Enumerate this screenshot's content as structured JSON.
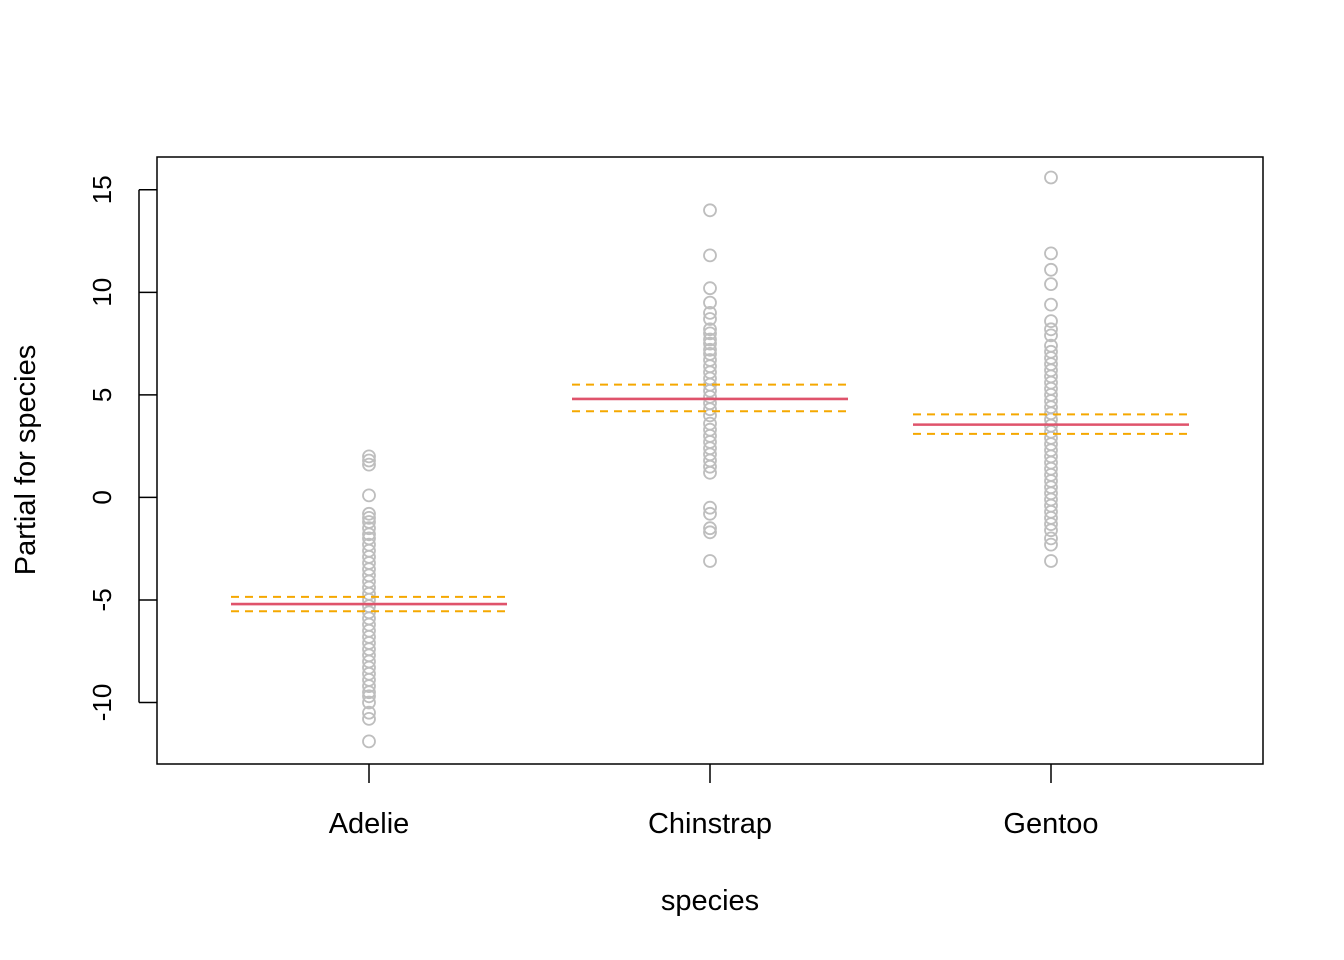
{
  "chart_data": {
    "type": "scatter",
    "title": "",
    "xlabel": "species",
    "ylabel": "Partial for species",
    "categories": [
      "Adelie",
      "Chinstrap",
      "Gentoo"
    ],
    "ylim": [
      -13,
      16.6
    ],
    "yticks": [
      -10,
      -5,
      0,
      5,
      10,
      15
    ],
    "grid": false,
    "legend": "none",
    "colors": {
      "points": "#bebebe",
      "fit": "#df536b",
      "ci": "#f5a800",
      "axis": "#000000"
    },
    "series": [
      {
        "category": "Adelie",
        "fit": -5.2,
        "ci": [
          -5.55,
          -4.85
        ],
        "points": [
          2.0,
          1.8,
          1.6,
          0.1,
          -0.8,
          -1.0,
          -1.2,
          -1.5,
          -1.8,
          -2.0,
          -2.3,
          -2.6,
          -2.9,
          -3.2,
          -3.5,
          -3.8,
          -4.1,
          -4.4,
          -4.7,
          -5.0,
          -5.3,
          -5.6,
          -5.9,
          -6.2,
          -6.5,
          -6.8,
          -7.1,
          -7.4,
          -7.7,
          -8.0,
          -8.3,
          -8.6,
          -8.9,
          -9.2,
          -9.5,
          -9.7,
          -10.0,
          -10.5,
          -10.8,
          -11.9
        ]
      },
      {
        "category": "Chinstrap",
        "fit": 4.8,
        "ci": [
          4.2,
          5.5
        ],
        "points": [
          14.0,
          11.8,
          10.2,
          9.5,
          9.0,
          8.7,
          8.2,
          8.0,
          7.7,
          7.5,
          7.2,
          7.0,
          6.7,
          6.4,
          6.1,
          5.8,
          5.5,
          5.2,
          4.9,
          4.6,
          4.3,
          4.0,
          3.6,
          3.3,
          3.0,
          2.7,
          2.4,
          2.1,
          1.8,
          1.5,
          1.2,
          -0.5,
          -0.8,
          -1.5,
          -1.7,
          -3.1
        ]
      },
      {
        "category": "Gentoo",
        "fit": 3.55,
        "ci": [
          3.1,
          4.05
        ],
        "points": [
          15.6,
          11.9,
          11.1,
          10.4,
          9.4,
          8.6,
          8.2,
          7.9,
          7.4,
          7.1,
          6.8,
          6.5,
          6.2,
          5.9,
          5.6,
          5.3,
          5.0,
          4.7,
          4.4,
          4.1,
          3.8,
          3.5,
          3.2,
          2.9,
          2.6,
          2.3,
          2.0,
          1.7,
          1.4,
          1.1,
          0.8,
          0.5,
          0.2,
          -0.1,
          -0.4,
          -0.7,
          -1.0,
          -1.3,
          -1.6,
          -2.0,
          -2.3,
          -3.1
        ]
      }
    ]
  }
}
